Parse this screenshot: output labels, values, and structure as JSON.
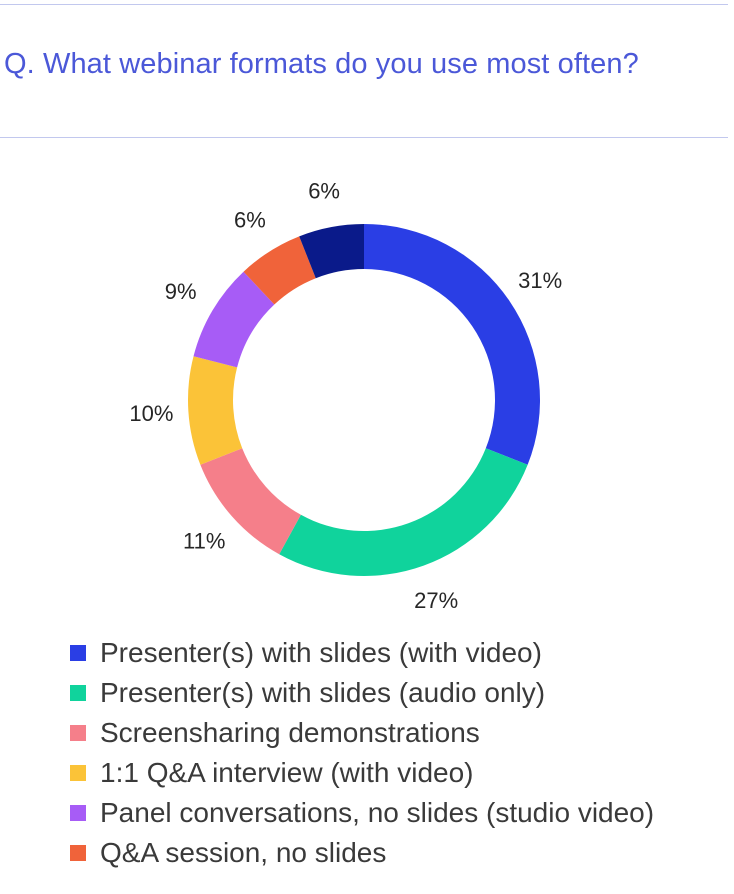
{
  "header": {
    "question": "Q. What webinar formats do you use most often?"
  },
  "chart_data": {
    "type": "pie",
    "donut": true,
    "start": "12 o'clock, clockwise",
    "categories": [
      "Presenter(s) with slides (with video)",
      "Presenter(s) with slides (audio only)",
      "Screensharing demonstrations",
      "1:1 Q&A interview (with video)",
      "Panel conversations, no slides (studio video)",
      "Q&A session, no slides",
      ""
    ],
    "values": [
      31,
      27,
      11,
      10,
      9,
      6,
      6
    ],
    "labels": [
      "31%",
      "27%",
      "11%",
      "10%",
      "9%",
      "6%",
      "6%"
    ],
    "colors": [
      "#2a3ee5",
      "#10d39c",
      "#f57f8a",
      "#fbc338",
      "#a75cf6",
      "#f0633a",
      "#0a1a8a"
    ],
    "legend_position": "bottom"
  },
  "legend": {
    "items": [
      {
        "label": "Presenter(s) with slides (with video)",
        "color": "#2a3ee5"
      },
      {
        "label": "Presenter(s) with slides (audio only)",
        "color": "#10d39c"
      },
      {
        "label": "Screensharing demonstrations",
        "color": "#f57f8a"
      },
      {
        "label": "1:1 Q&A interview (with video)",
        "color": "#fbc338"
      },
      {
        "label": "Panel conversations, no slides (studio video)",
        "color": "#a75cf6"
      },
      {
        "label": "Q&A session, no slides",
        "color": "#f0633a"
      }
    ]
  }
}
